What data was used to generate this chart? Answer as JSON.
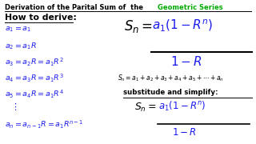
{
  "bg_color": "#ffffff",
  "blue": "#1a1aee",
  "black": "#000000",
  "green": "#00aa00",
  "title_black": "Derivation of the Parital Sum of  the  ",
  "title_green": "Geometric Series",
  "section": "How to derive:",
  "left_lines": [
    "$a_1 = a_1$",
    "$a_2 = a_1R$",
    "$a_3 = a_2R = a_1R^2$",
    "$a_4 = a_3R = a_1R^3$",
    "$a_5 = a_4R = a_1R^4$",
    "$a_n = a_{n-1}R = a_1R^{n-1}$"
  ],
  "big_sn": "$S_n$",
  "big_num": "$a_1(1 - R^n)$",
  "big_den": "$1 - R$",
  "mid_sn": "$S_n=a_1+a_2+a_3+a_4+a_5+\\cdots+a_n$",
  "sub_label": "substitude and simplify:",
  "sm_sn": "$S_n$",
  "sm_num": "$a_1(1 - R^n)$",
  "sm_den": "$1 - R$"
}
